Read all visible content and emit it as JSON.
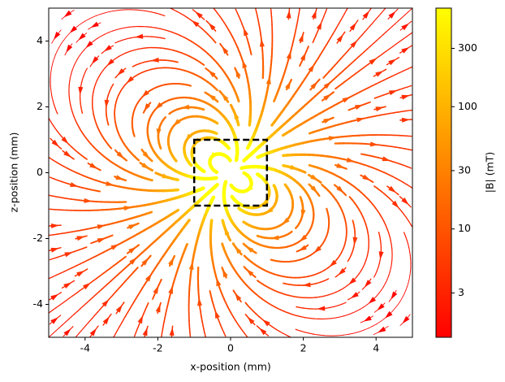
{
  "chart_data": {
    "type": "streamplot",
    "xlabel": "x-position (mm)",
    "ylabel": "z-position (mm)",
    "xlim": [
      -5,
      5
    ],
    "ylim": [
      -5,
      5
    ],
    "xticks": [
      -4,
      -2,
      0,
      2,
      4
    ],
    "yticks": [
      -4,
      -2,
      0,
      2,
      4
    ],
    "magnet_outline": {
      "x": [
        -1,
        1
      ],
      "y": [
        -1,
        1
      ]
    },
    "colorbar": {
      "label": "|B| (mT)",
      "scale": "log",
      "colormap": "autumn",
      "lim": [
        1.3,
        640
      ],
      "ticks": [
        3,
        10,
        30,
        100,
        300
      ]
    }
  }
}
